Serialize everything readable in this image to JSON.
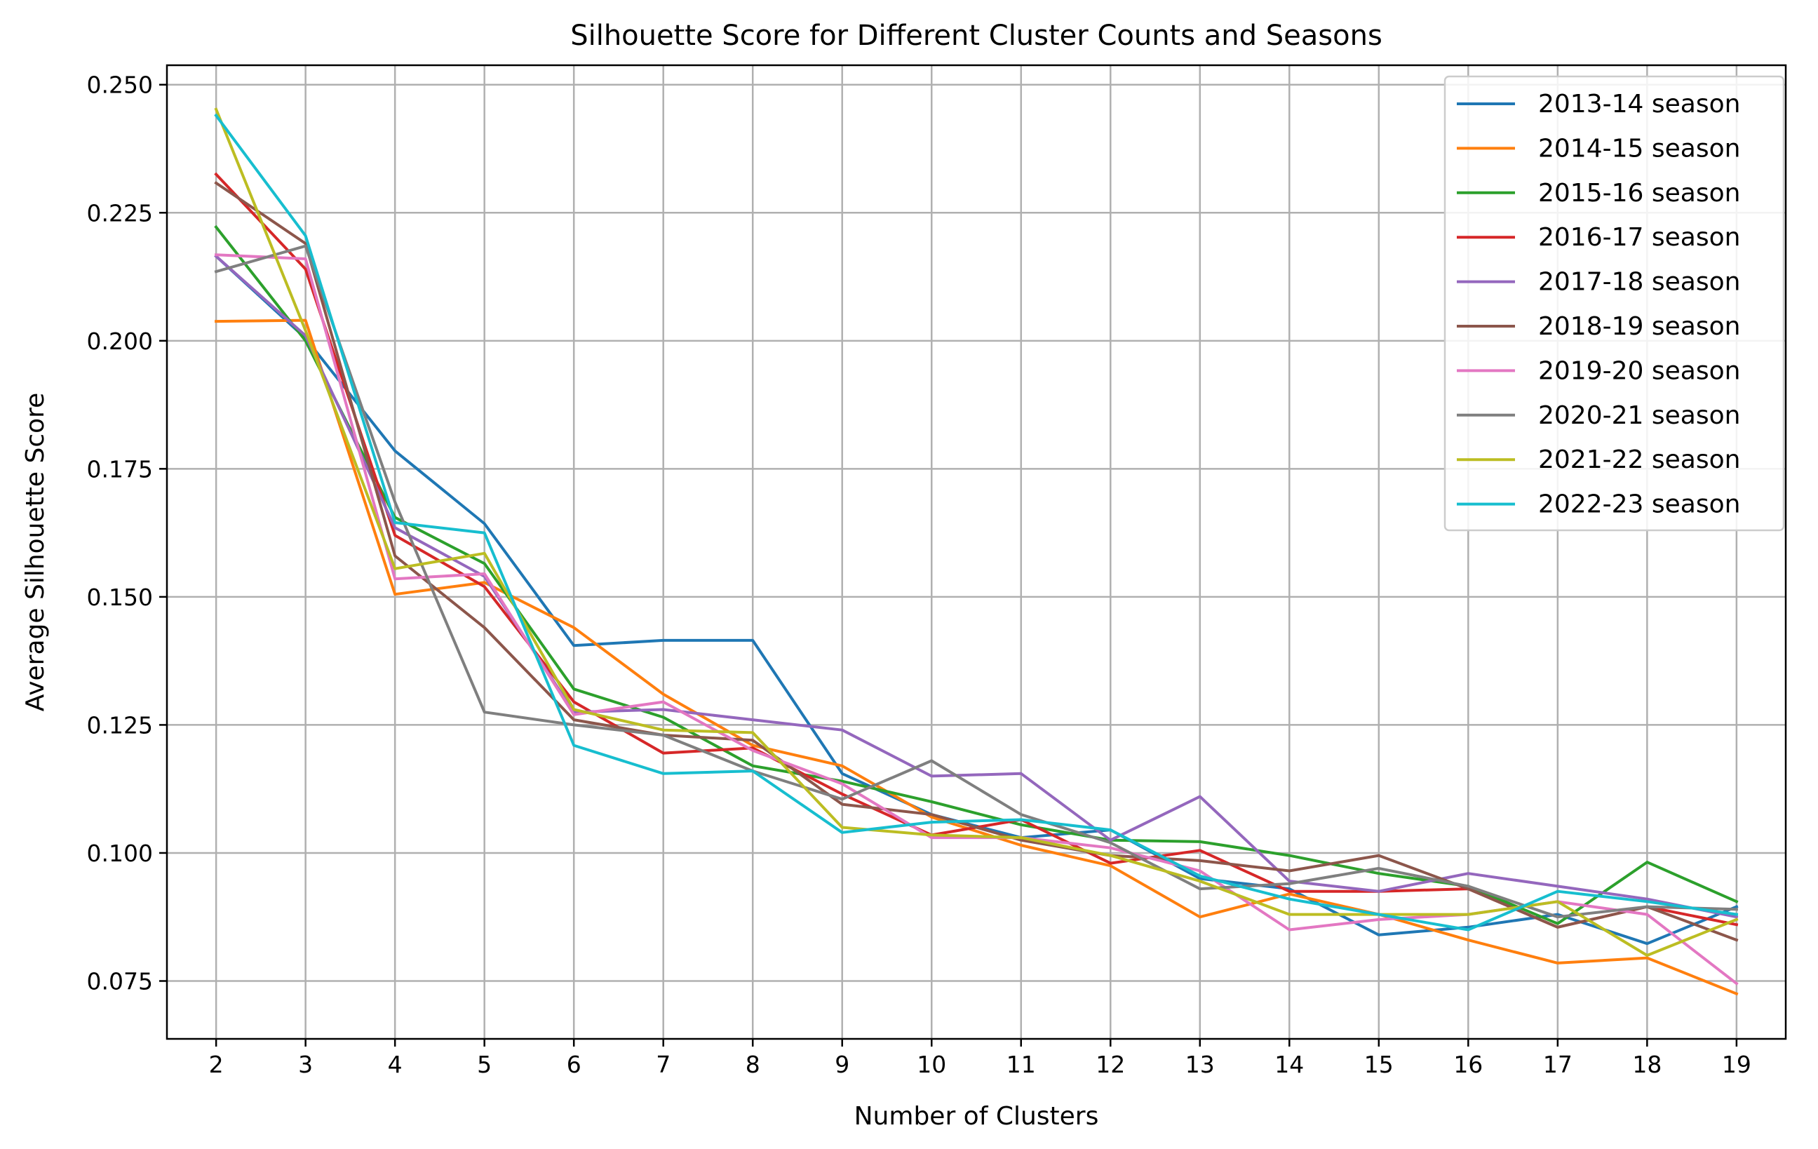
{
  "chart_data": {
    "type": "line",
    "title": "Silhouette Score for Different Cluster Counts and Seasons",
    "xlabel": "Number of Clusters",
    "ylabel": "Average Silhouette Score",
    "x": [
      2,
      3,
      4,
      5,
      6,
      7,
      8,
      9,
      10,
      11,
      12,
      13,
      14,
      15,
      16,
      17,
      18,
      19
    ],
    "xlim": [
      1.45,
      19.55
    ],
    "ylim": [
      0.0637,
      0.2538
    ],
    "yticks": [
      "0.075",
      "0.100",
      "0.125",
      "0.150",
      "0.175",
      "0.200",
      "0.225",
      "0.250"
    ],
    "ytick_values": [
      0.075,
      0.1,
      0.125,
      0.15,
      0.175,
      0.2,
      0.225,
      0.25
    ],
    "grid": true,
    "legend_position": "upper right",
    "series": [
      {
        "name": "2013-14 season",
        "color": "#1f77b4",
        "values": [
          0.2165,
          0.2005,
          0.1785,
          0.1643,
          0.1405,
          0.1415,
          0.1415,
          0.1155,
          0.1075,
          0.103,
          0.1045,
          0.095,
          0.093,
          0.084,
          0.0855,
          0.088,
          0.0823,
          0.0895
        ]
      },
      {
        "name": "2014-15 season",
        "color": "#ff7f0e",
        "values": [
          0.2038,
          0.204,
          0.1505,
          0.1528,
          0.144,
          0.131,
          0.121,
          0.117,
          0.107,
          0.1015,
          0.0975,
          0.0875,
          0.092,
          0.088,
          0.083,
          0.0785,
          0.0795,
          0.0725
        ]
      },
      {
        "name": "2015-16 season",
        "color": "#2ca02c",
        "values": [
          0.2222,
          0.2,
          0.1655,
          0.1565,
          0.132,
          0.1265,
          0.117,
          0.114,
          0.11,
          0.1055,
          0.1025,
          0.1022,
          0.0995,
          0.096,
          0.0935,
          0.0862,
          0.0982,
          0.0905
        ]
      },
      {
        "name": "2016-17 season",
        "color": "#d62728",
        "values": [
          0.2325,
          0.214,
          0.162,
          0.152,
          0.1295,
          0.1195,
          0.1205,
          0.1115,
          0.1035,
          0.1065,
          0.098,
          0.1005,
          0.0925,
          0.0925,
          0.093,
          0.0855,
          0.0895,
          0.086
        ]
      },
      {
        "name": "2017-18 season",
        "color": "#9467bd",
        "values": [
          0.2165,
          0.201,
          0.1635,
          0.154,
          0.1275,
          0.128,
          0.126,
          0.124,
          0.115,
          0.1155,
          0.1025,
          0.111,
          0.0945,
          0.0925,
          0.096,
          0.0935,
          0.091,
          0.0875
        ]
      },
      {
        "name": "2018-19 season",
        "color": "#8c564b",
        "values": [
          0.2308,
          0.219,
          0.158,
          0.144,
          0.126,
          0.123,
          0.122,
          0.1095,
          0.1075,
          0.1025,
          0.0995,
          0.0985,
          0.0965,
          0.0995,
          0.093,
          0.0855,
          0.0895,
          0.083
        ]
      },
      {
        "name": "2019-20 season",
        "color": "#e377c2",
        "values": [
          0.2168,
          0.216,
          0.1535,
          0.1545,
          0.127,
          0.1295,
          0.12,
          0.1135,
          0.103,
          0.103,
          0.101,
          0.0965,
          0.085,
          0.087,
          0.088,
          0.0905,
          0.088,
          0.0745
        ]
      },
      {
        "name": "2020-21 season",
        "color": "#7f7f7f",
        "values": [
          0.2135,
          0.2185,
          0.1685,
          0.1275,
          0.125,
          0.123,
          0.116,
          0.1105,
          0.118,
          0.1075,
          0.102,
          0.093,
          0.094,
          0.097,
          0.0935,
          0.0875,
          0.0895,
          0.089
        ]
      },
      {
        "name": "2021-22 season",
        "color": "#bcbd22",
        "values": [
          0.2452,
          0.202,
          0.1555,
          0.1585,
          0.128,
          0.124,
          0.1235,
          0.105,
          0.1035,
          0.103,
          0.0995,
          0.0945,
          0.088,
          0.088,
          0.088,
          0.0905,
          0.08,
          0.087
        ]
      },
      {
        "name": "2022-23 season",
        "color": "#17becf",
        "values": [
          0.244,
          0.2205,
          0.1645,
          0.1625,
          0.121,
          0.1155,
          0.116,
          0.104,
          0.106,
          0.1065,
          0.1045,
          0.0955,
          0.091,
          0.088,
          0.085,
          0.0925,
          0.0905,
          0.088
        ]
      }
    ]
  }
}
